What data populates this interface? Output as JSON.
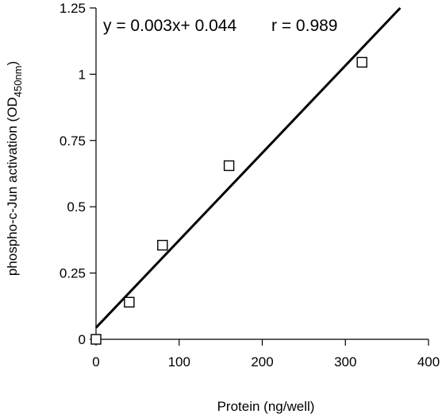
{
  "chart_data": {
    "type": "scatter",
    "xlabel": "Protein (ng/well)",
    "ylabel_main": "phospho-c-Jun activation (OD",
    "ylabel_sub": "450nm",
    "ylabel_close": ")",
    "xlim": [
      0,
      400
    ],
    "ylim": [
      0,
      1.25
    ],
    "x_ticks": [
      0,
      100,
      200,
      300,
      400
    ],
    "x_tick_labels": [
      "0",
      "100",
      "200",
      "300",
      "400"
    ],
    "y_ticks": [
      0,
      0.25,
      0.5,
      0.75,
      1,
      1.25
    ],
    "y_tick_labels": [
      "0",
      "0.25",
      "0.5",
      "0.75",
      "1",
      "1.25"
    ],
    "points": [
      {
        "x": 0,
        "y": 0
      },
      {
        "x": 40,
        "y": 0.14
      },
      {
        "x": 80,
        "y": 0.355
      },
      {
        "x": 160,
        "y": 0.655
      },
      {
        "x": 320,
        "y": 1.045
      }
    ],
    "fit_line": {
      "x_start": 0,
      "y_start": 0.044,
      "x_end": 366,
      "y_end": 1.25
    },
    "equation_text": "y = 0.003x+ 0.044",
    "r_text": "r = 0.989",
    "grid": false,
    "marker": "open-square",
    "colors": {
      "marks": "#000000",
      "background": "#ffffff"
    }
  }
}
